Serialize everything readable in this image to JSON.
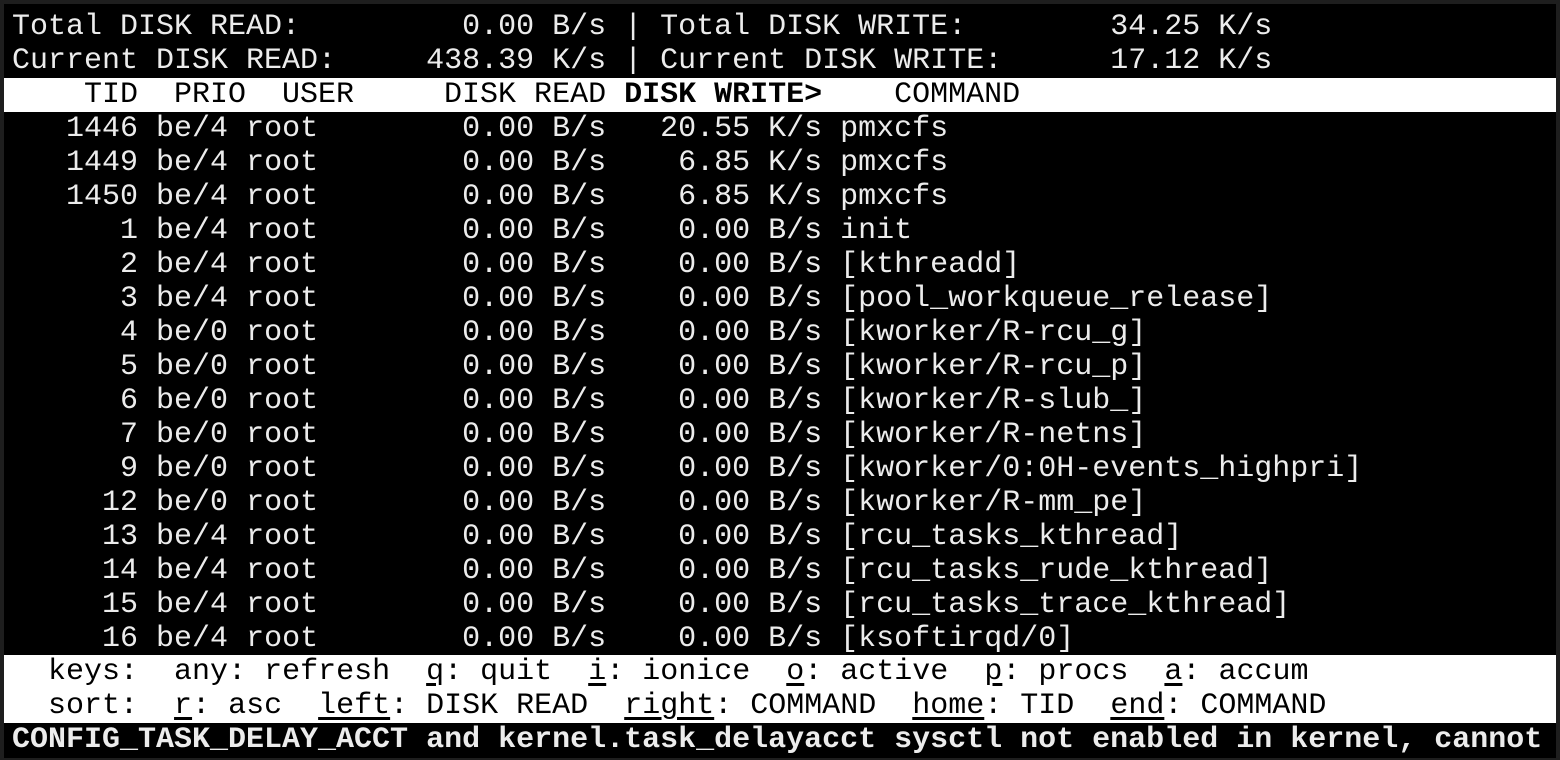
{
  "summary": {
    "total_read_label": "Total DISK READ:",
    "total_read_value": "0.00 B/s",
    "total_write_label": "Total DISK WRITE:",
    "total_write_value": "34.25 K/s",
    "current_read_label": "Current DISK READ:",
    "current_read_value": "438.39 K/s",
    "current_write_label": "Current DISK WRITE:",
    "current_write_value": "17.12 K/s",
    "separator": "|"
  },
  "columns": {
    "tid": "TID",
    "prio": "PRIO",
    "user": "USER",
    "disk_read": "DISK READ",
    "disk_write": "DISK WRITE>",
    "command": "COMMAND",
    "sorted_column": "disk_write"
  },
  "rows": [
    {
      "tid": "1446",
      "prio": "be/4",
      "user": "root",
      "read": "0.00 B/s",
      "write": "20.55 K/s",
      "command": "pmxcfs"
    },
    {
      "tid": "1449",
      "prio": "be/4",
      "user": "root",
      "read": "0.00 B/s",
      "write": "6.85 K/s",
      "command": "pmxcfs"
    },
    {
      "tid": "1450",
      "prio": "be/4",
      "user": "root",
      "read": "0.00 B/s",
      "write": "6.85 K/s",
      "command": "pmxcfs"
    },
    {
      "tid": "1",
      "prio": "be/4",
      "user": "root",
      "read": "0.00 B/s",
      "write": "0.00 B/s",
      "command": "init"
    },
    {
      "tid": "2",
      "prio": "be/4",
      "user": "root",
      "read": "0.00 B/s",
      "write": "0.00 B/s",
      "command": "[kthreadd]"
    },
    {
      "tid": "3",
      "prio": "be/4",
      "user": "root",
      "read": "0.00 B/s",
      "write": "0.00 B/s",
      "command": "[pool_workqueue_release]"
    },
    {
      "tid": "4",
      "prio": "be/0",
      "user": "root",
      "read": "0.00 B/s",
      "write": "0.00 B/s",
      "command": "[kworker/R-rcu_g]"
    },
    {
      "tid": "5",
      "prio": "be/0",
      "user": "root",
      "read": "0.00 B/s",
      "write": "0.00 B/s",
      "command": "[kworker/R-rcu_p]"
    },
    {
      "tid": "6",
      "prio": "be/0",
      "user": "root",
      "read": "0.00 B/s",
      "write": "0.00 B/s",
      "command": "[kworker/R-slub_]"
    },
    {
      "tid": "7",
      "prio": "be/0",
      "user": "root",
      "read": "0.00 B/s",
      "write": "0.00 B/s",
      "command": "[kworker/R-netns]"
    },
    {
      "tid": "9",
      "prio": "be/0",
      "user": "root",
      "read": "0.00 B/s",
      "write": "0.00 B/s",
      "command": "[kworker/0:0H-events_highpri]"
    },
    {
      "tid": "12",
      "prio": "be/0",
      "user": "root",
      "read": "0.00 B/s",
      "write": "0.00 B/s",
      "command": "[kworker/R-mm_pe]"
    },
    {
      "tid": "13",
      "prio": "be/4",
      "user": "root",
      "read": "0.00 B/s",
      "write": "0.00 B/s",
      "command": "[rcu_tasks_kthread]"
    },
    {
      "tid": "14",
      "prio": "be/4",
      "user": "root",
      "read": "0.00 B/s",
      "write": "0.00 B/s",
      "command": "[rcu_tasks_rude_kthread]"
    },
    {
      "tid": "15",
      "prio": "be/4",
      "user": "root",
      "read": "0.00 B/s",
      "write": "0.00 B/s",
      "command": "[rcu_tasks_trace_kthread]"
    },
    {
      "tid": "16",
      "prio": "be/4",
      "user": "root",
      "read": "0.00 B/s",
      "write": "0.00 B/s",
      "command": "[ksoftirqd/0]"
    }
  ],
  "footer": {
    "keys_label": "keys:",
    "keys": [
      {
        "key": "any",
        "label": "refresh",
        "underline": false
      },
      {
        "key": "q",
        "label": "quit",
        "underline": true
      },
      {
        "key": "i",
        "label": "ionice",
        "underline": true
      },
      {
        "key": "o",
        "label": "active",
        "underline": true
      },
      {
        "key": "p",
        "label": "procs",
        "underline": true
      },
      {
        "key": "a",
        "label": "accum",
        "underline": true
      }
    ],
    "sort_label": "sort:",
    "sort": [
      {
        "key": "r",
        "label": "asc",
        "underline": true
      },
      {
        "key": "left",
        "label": "DISK READ",
        "underline": true
      },
      {
        "key": "right",
        "label": "COMMAND",
        "underline": true
      },
      {
        "key": "home",
        "label": "TID",
        "underline": true
      },
      {
        "key": "end",
        "label": "COMMAND",
        "underline": true
      }
    ]
  },
  "status_message": "CONFIG_TASK_DELAY_ACCT and kernel.task_delayacct sysctl not enabled in kernel, cannot",
  "colors": {
    "background": "#000000",
    "text": "#ececec",
    "header_bg": "#ffffff"
  }
}
